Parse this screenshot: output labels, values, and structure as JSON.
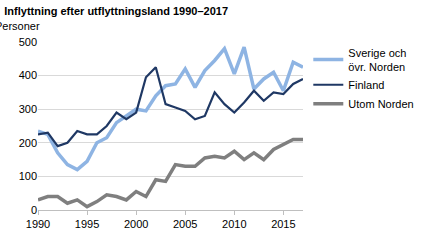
{
  "chart_data": {
    "type": "line",
    "title": "Inflyttning efter utflyttningsland 1990–2017",
    "ylabel": "Personer",
    "x": [
      1990,
      1991,
      1992,
      1993,
      1994,
      1995,
      1996,
      1997,
      1998,
      1999,
      2000,
      2001,
      2002,
      2003,
      2004,
      2005,
      2006,
      2007,
      2008,
      2009,
      2010,
      2011,
      2012,
      2013,
      2014,
      2015,
      2016,
      2017
    ],
    "series": [
      {
        "name": "Sverige och övr. Norden",
        "color": "#8eb4e3",
        "values": [
          235,
          225,
          170,
          135,
          120,
          145,
          200,
          215,
          260,
          280,
          300,
          295,
          340,
          370,
          375,
          420,
          365,
          415,
          445,
          480,
          405,
          485,
          360,
          390,
          410,
          355,
          440,
          425
        ]
      },
      {
        "name": "Finland",
        "color": "#1f3864",
        "values": [
          225,
          230,
          190,
          200,
          235,
          225,
          225,
          250,
          290,
          270,
          290,
          395,
          425,
          315,
          305,
          295,
          270,
          280,
          350,
          315,
          290,
          320,
          355,
          325,
          350,
          345,
          375,
          390
        ]
      },
      {
        "name": "Utom Norden",
        "color": "#7f7f7f",
        "values": [
          30,
          40,
          40,
          20,
          30,
          10,
          25,
          45,
          40,
          30,
          55,
          40,
          90,
          85,
          135,
          130,
          130,
          155,
          160,
          155,
          175,
          150,
          170,
          150,
          180,
          195,
          210,
          210
        ]
      }
    ],
    "xlim": [
      1990,
      2017
    ],
    "xticks": [
      1990,
      1995,
      2000,
      2005,
      2010,
      2015
    ],
    "ylim": [
      0,
      500
    ],
    "yticks": [
      0,
      100,
      200,
      300,
      400,
      500
    ],
    "grid": true,
    "legend": "right"
  }
}
